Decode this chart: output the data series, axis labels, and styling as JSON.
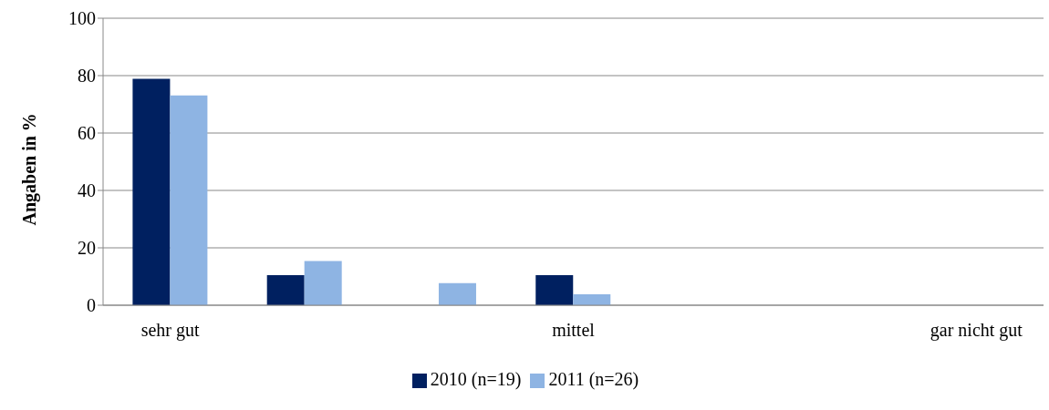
{
  "chart_data": {
    "type": "bar",
    "ylabel": "Angaben in %",
    "categories": [
      "sehr gut",
      null,
      null,
      "mittel",
      null,
      null,
      "gar nicht gut"
    ],
    "series": [
      {
        "name": "2010 (n=19)",
        "color": "#002060",
        "values": [
          78.9,
          10.5,
          0,
          10.5,
          0,
          0,
          0
        ]
      },
      {
        "name": "2011 (n=26)",
        "color": "#8eb4e3",
        "values": [
          73.1,
          15.4,
          7.7,
          3.8,
          0,
          0,
          0
        ]
      }
    ],
    "ylim": [
      0,
      100
    ],
    "yticks": [
      0,
      20,
      40,
      60,
      80,
      100
    ],
    "grid": "y",
    "legend": "bottom"
  }
}
